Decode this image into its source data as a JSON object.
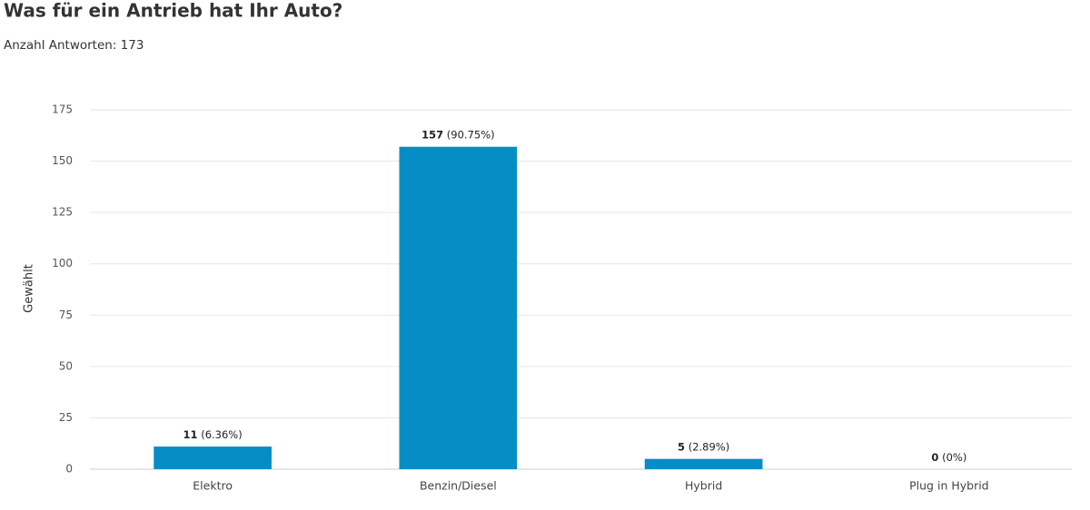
{
  "chart_data": {
    "type": "bar",
    "title": "Was für ein Antrieb hat Ihr Auto?",
    "subtitle": "Anzahl Antworten: 173",
    "y_label": "Gewählt",
    "categories": [
      "Elektro",
      "Benzin/Diesel",
      "Hybrid",
      "Plug in Hybrid"
    ],
    "values": [
      11,
      157,
      5,
      0
    ],
    "share_labels": [
      "(6.36%)",
      "(90.75%)",
      "(2.89%)",
      "(0%)"
    ],
    "color": "#078dc6",
    "ylim": [
      0,
      175
    ],
    "yticks": [
      0,
      25,
      50,
      75,
      100,
      125,
      150,
      175
    ],
    "grid": true
  }
}
